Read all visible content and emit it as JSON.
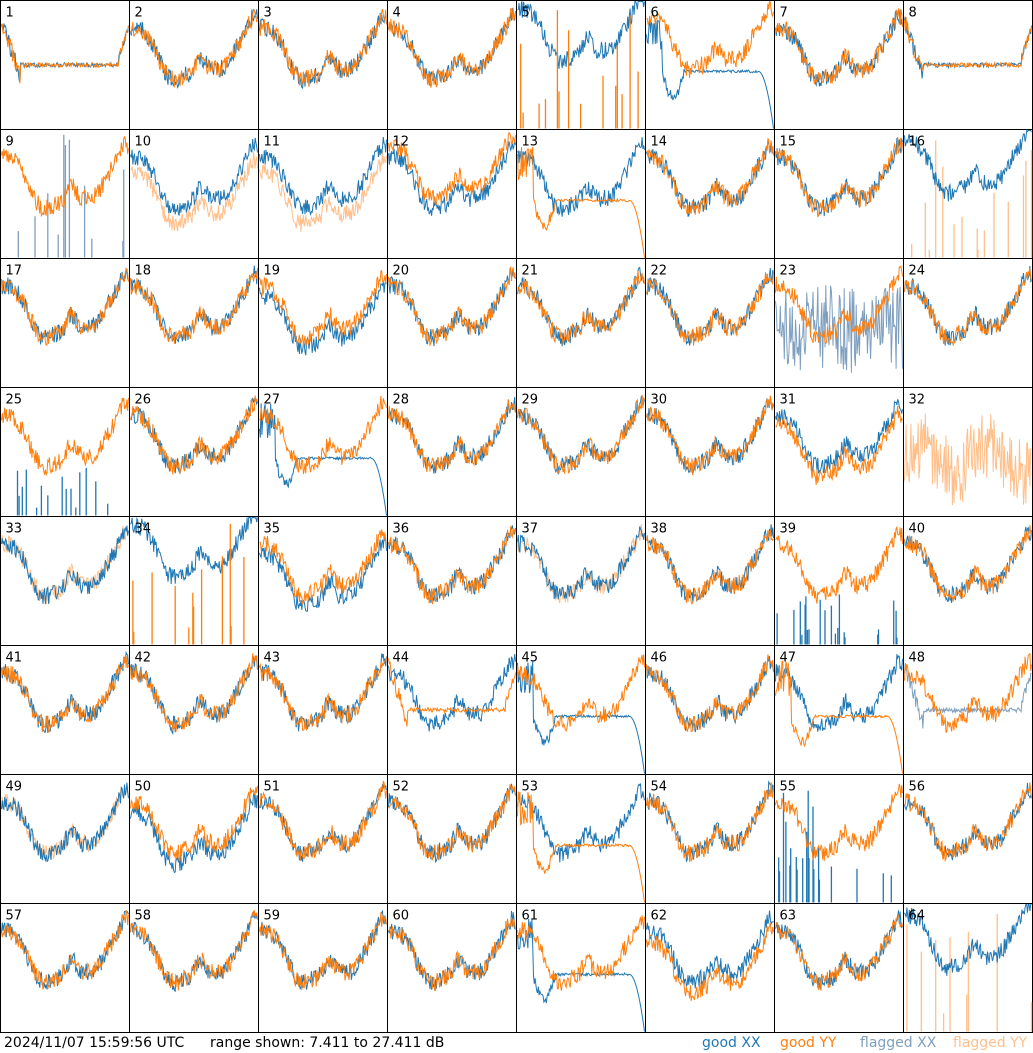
{
  "chart_data": {
    "type": "line",
    "panel_count": 64,
    "grid_cols": 8,
    "y_range_db": [
      7.411,
      27.411
    ],
    "timestamp": "2024/11/07 15:59:56 UTC",
    "range_text": "range shown: 7.411 to 27.411 dB",
    "legend": {
      "good_xx": "good XX",
      "good_yy": "good YY",
      "flagged_xx": "flagged XX",
      "flagged_yy": "flagged YY"
    },
    "colors": {
      "good_xx": "#1f77b4",
      "good_yy": "#ff7f0e",
      "flagged_xx": "#7f9fbf",
      "flagged_yy": "#ffbf8a"
    },
    "panels": [
      {
        "id": "1",
        "xx": "good",
        "yy": "good",
        "xx_shape": "dip_flat",
        "yy_shape": "dip_flat"
      },
      {
        "id": "2",
        "xx": "good",
        "yy": "good"
      },
      {
        "id": "3",
        "xx": "good",
        "yy": "good"
      },
      {
        "id": "4",
        "xx": "good",
        "yy": "good"
      },
      {
        "id": "5",
        "xx": "good",
        "yy": "good",
        "yy_shape": "spikes",
        "xx_level": 5
      },
      {
        "id": "6",
        "xx": "good",
        "yy": "good",
        "xx_shape": "dip_fall",
        "yy_offset": 2
      },
      {
        "id": "7",
        "xx": "good",
        "yy": "good"
      },
      {
        "id": "8",
        "xx": "good",
        "yy": "good",
        "xx_shape": "dip_flat",
        "yy_shape": "dip_flat"
      },
      {
        "id": "9",
        "xx": "flagged",
        "yy": "good",
        "xx_shape": "spikes"
      },
      {
        "id": "10",
        "xx": "good",
        "yy": "flagged",
        "yy_offset": -3
      },
      {
        "id": "11",
        "xx": "good",
        "yy": "flagged",
        "yy_offset": -3
      },
      {
        "id": "12",
        "xx": "good",
        "yy": "good",
        "yy_offset": 2
      },
      {
        "id": "13",
        "xx": "good",
        "yy": "good",
        "yy_shape": "dip_fall"
      },
      {
        "id": "14",
        "xx": "good",
        "yy": "good"
      },
      {
        "id": "15",
        "xx": "good",
        "yy": "good"
      },
      {
        "id": "16",
        "xx": "good",
        "yy": "flagged",
        "yy_shape": "spikes",
        "xx_level": 4
      },
      {
        "id": "17",
        "xx": "good",
        "yy": "good"
      },
      {
        "id": "18",
        "xx": "good",
        "yy": "good"
      },
      {
        "id": "19",
        "xx": "good",
        "yy": "good",
        "xx_offset": -2
      },
      {
        "id": "20",
        "xx": "good",
        "yy": "good"
      },
      {
        "id": "21",
        "xx": "good",
        "yy": "good"
      },
      {
        "id": "22",
        "xx": "good",
        "yy": "good"
      },
      {
        "id": "23",
        "xx": "flagged",
        "yy": "good",
        "xx_shape": "noise"
      },
      {
        "id": "24",
        "xx": "good",
        "yy": "good"
      },
      {
        "id": "25",
        "xx": "good",
        "yy": "good",
        "xx_shape": "spikes_low"
      },
      {
        "id": "26",
        "xx": "good",
        "yy": "good"
      },
      {
        "id": "27",
        "xx": "good",
        "yy": "good",
        "xx_shape": "dip_fall"
      },
      {
        "id": "28",
        "xx": "good",
        "yy": "good"
      },
      {
        "id": "29",
        "xx": "good",
        "yy": "good"
      },
      {
        "id": "30",
        "xx": "good",
        "yy": "good"
      },
      {
        "id": "31",
        "xx": "good",
        "yy": "good",
        "yy_offset": -2
      },
      {
        "id": "32",
        "xx": "none",
        "yy": "flagged",
        "yy_shape": "noise_high"
      },
      {
        "id": "33",
        "xx": "good",
        "yy": "flagged"
      },
      {
        "id": "34",
        "xx": "good",
        "yy": "good",
        "yy_shape": "spikes",
        "xx_level": 5
      },
      {
        "id": "35",
        "xx": "good",
        "yy": "good",
        "xx_offset": -2
      },
      {
        "id": "36",
        "xx": "good",
        "yy": "good"
      },
      {
        "id": "37",
        "xx": "good",
        "yy": "flagged"
      },
      {
        "id": "38",
        "xx": "good",
        "yy": "good"
      },
      {
        "id": "39",
        "xx": "good",
        "yy": "good",
        "xx_shape": "spikes_low"
      },
      {
        "id": "40",
        "xx": "good",
        "yy": "good"
      },
      {
        "id": "41",
        "xx": "good",
        "yy": "good"
      },
      {
        "id": "42",
        "xx": "good",
        "yy": "good"
      },
      {
        "id": "43",
        "xx": "good",
        "yy": "good"
      },
      {
        "id": "44",
        "xx": "good",
        "yy": "good",
        "yy_shape": "dip_flat"
      },
      {
        "id": "45",
        "xx": "good",
        "yy": "good",
        "xx_shape": "dip_fall"
      },
      {
        "id": "46",
        "xx": "good",
        "yy": "good"
      },
      {
        "id": "47",
        "xx": "good",
        "yy": "good",
        "yy_shape": "dip_fall"
      },
      {
        "id": "48",
        "xx": "flagged",
        "yy": "good",
        "xx_shape": "dip_flat"
      },
      {
        "id": "49",
        "xx": "good",
        "yy": "flagged"
      },
      {
        "id": "50",
        "xx": "good",
        "yy": "good",
        "xx_offset": -2
      },
      {
        "id": "51",
        "xx": "good",
        "yy": "good"
      },
      {
        "id": "52",
        "xx": "good",
        "yy": "good"
      },
      {
        "id": "53",
        "xx": "good",
        "yy": "good",
        "yy_shape": "dip_fall"
      },
      {
        "id": "54",
        "xx": "good",
        "yy": "good"
      },
      {
        "id": "55",
        "xx": "good",
        "yy": "good",
        "xx_shape": "spikes_dense"
      },
      {
        "id": "56",
        "xx": "good",
        "yy": "good"
      },
      {
        "id": "57",
        "xx": "good",
        "yy": "good"
      },
      {
        "id": "58",
        "xx": "good",
        "yy": "good"
      },
      {
        "id": "59",
        "xx": "good",
        "yy": "good"
      },
      {
        "id": "60",
        "xx": "good",
        "yy": "good"
      },
      {
        "id": "61",
        "xx": "good",
        "yy": "good",
        "xx_shape": "dip_fall"
      },
      {
        "id": "62",
        "xx": "good",
        "yy": "good",
        "yy_offset": -2
      },
      {
        "id": "63",
        "xx": "good",
        "yy": "good"
      },
      {
        "id": "64",
        "xx": "good",
        "yy": "flagged",
        "yy_shape": "spikes",
        "xx_level": 4
      }
    ]
  }
}
